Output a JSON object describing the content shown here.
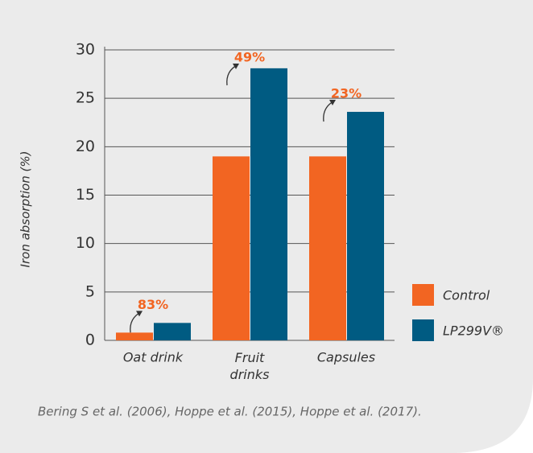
{
  "chart_data": {
    "type": "bar",
    "categories": [
      "Oat drink",
      "Fruit drinks",
      "Capsules"
    ],
    "series": [
      {
        "name": "Control",
        "color": "#f26522",
        "values": [
          0.8,
          19,
          19
        ]
      },
      {
        "name": "LP299V®",
        "color": "#005b82",
        "values": [
          1.8,
          28.1,
          23.6
        ]
      }
    ],
    "annotations": [
      "83%",
      "49%",
      "23%"
    ],
    "ylabel": "Iron absorption (%)",
    "source": "Bering S et al. (2006), Hoppe et al. (2015), Hoppe et al. (2017).",
    "ylim": [
      0,
      30
    ],
    "yticks": [
      0,
      5,
      10,
      15,
      20,
      25,
      30
    ],
    "grid": true,
    "legend": "right"
  }
}
